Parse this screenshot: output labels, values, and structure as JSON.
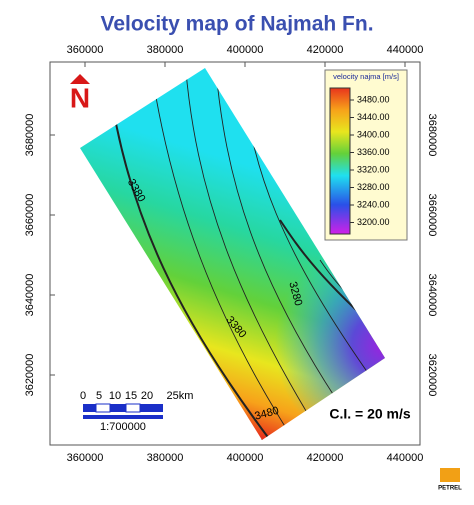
{
  "title": "Velocity map of Najmah Fn.",
  "x_ticks": [
    360000,
    380000,
    400000,
    420000,
    440000
  ],
  "y_ticks": [
    3680000,
    3660000,
    3640000,
    3620000
  ],
  "legend": {
    "title": "velocity najma [m/s]",
    "labels": [
      "3480.00",
      "3440.00",
      "3400.00",
      "3360.00",
      "3320.00",
      "3280.00",
      "3240.00",
      "3200.00"
    ]
  },
  "contour_labels": [
    "3380",
    "3380",
    "3280",
    "3480"
  ],
  "north": "N",
  "scale_bar": {
    "labels": [
      "0",
      "5",
      "10",
      "15",
      "20",
      "25km"
    ],
    "ratio": "1:700000"
  },
  "contour_interval": "C.I. = 20 m/s",
  "logo": "PETREL"
}
